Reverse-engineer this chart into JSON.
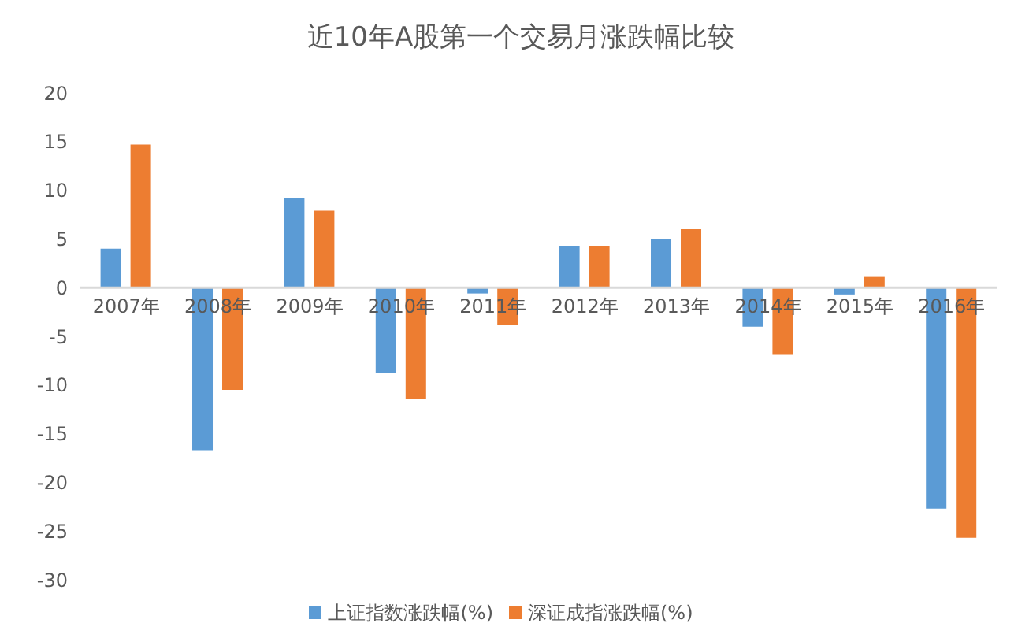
{
  "chart_data": {
    "type": "bar",
    "title": "近10年A股第一个交易月涨跌幅比较",
    "categories": [
      "2007年",
      "2008年",
      "2009年",
      "2010年",
      "2011年",
      "2012年",
      "2013年",
      "2014年",
      "2015年",
      "2016年"
    ],
    "series": [
      {
        "name": "上证指数涨跌幅(%)",
        "color": "#5b9bd5",
        "values": [
          4.0,
          -16.7,
          9.2,
          -8.8,
          -0.6,
          4.3,
          5.0,
          -4.0,
          -0.7,
          -22.7
        ]
      },
      {
        "name": "深证成指涨跌幅(%)",
        "color": "#ed7d31",
        "values": [
          14.7,
          -10.5,
          7.9,
          -11.4,
          -3.8,
          4.3,
          6.0,
          -6.9,
          1.1,
          -25.7
        ]
      }
    ],
    "ylim": [
      -30,
      20
    ],
    "yticks": [
      -30,
      -25,
      -20,
      -15,
      -10,
      -5,
      0,
      5,
      10,
      15,
      20
    ],
    "legend": "bottom"
  }
}
